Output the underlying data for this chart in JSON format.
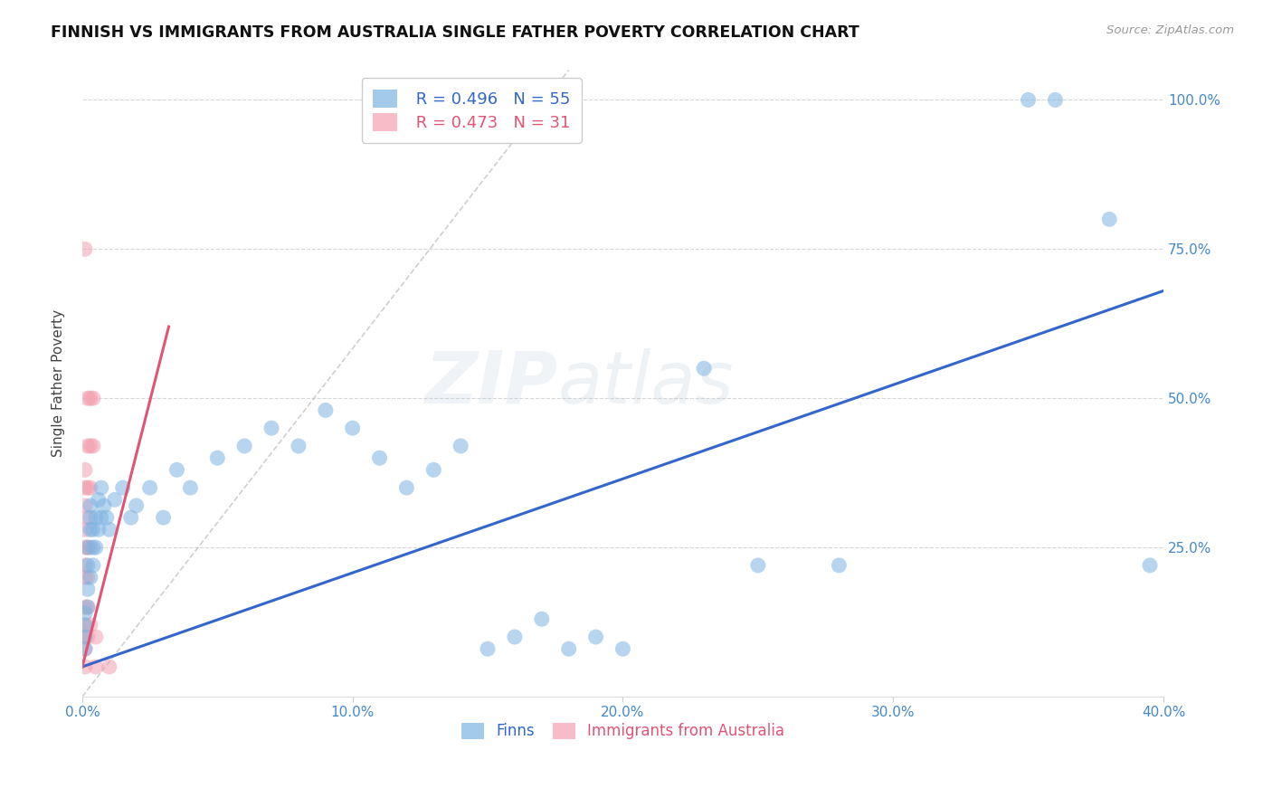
{
  "title": "FINNISH VS IMMIGRANTS FROM AUSTRALIA SINGLE FATHER POVERTY CORRELATION CHART",
  "source": "Source: ZipAtlas.com",
  "ylabel": "Single Father Poverty",
  "xlim": [
    0.0,
    0.4
  ],
  "ylim": [
    0.0,
    1.05
  ],
  "watermark": "ZIPatlas",
  "legend_blue_r": "R = 0.496",
  "legend_blue_n": "N = 55",
  "legend_pink_r": "R = 0.473",
  "legend_pink_n": "N = 31",
  "blue_color": "#7EB4E2",
  "pink_color": "#F4A0B0",
  "blue_line_color": "#3366CC",
  "pink_line_color": "#E05575",
  "blue_scatter": [
    [
      0.001,
      0.1
    ],
    [
      0.001,
      0.12
    ],
    [
      0.001,
      0.14
    ],
    [
      0.001,
      0.08
    ],
    [
      0.002,
      0.15
    ],
    [
      0.002,
      0.18
    ],
    [
      0.002,
      0.22
    ],
    [
      0.002,
      0.25
    ],
    [
      0.003,
      0.2
    ],
    [
      0.003,
      0.28
    ],
    [
      0.003,
      0.3
    ],
    [
      0.003,
      0.32
    ],
    [
      0.004,
      0.22
    ],
    [
      0.004,
      0.25
    ],
    [
      0.004,
      0.28
    ],
    [
      0.005,
      0.25
    ],
    [
      0.005,
      0.3
    ],
    [
      0.006,
      0.28
    ],
    [
      0.006,
      0.33
    ],
    [
      0.007,
      0.3
    ],
    [
      0.007,
      0.35
    ],
    [
      0.008,
      0.32
    ],
    [
      0.009,
      0.3
    ],
    [
      0.01,
      0.28
    ],
    [
      0.012,
      0.33
    ],
    [
      0.015,
      0.35
    ],
    [
      0.018,
      0.3
    ],
    [
      0.02,
      0.32
    ],
    [
      0.025,
      0.35
    ],
    [
      0.03,
      0.3
    ],
    [
      0.035,
      0.38
    ],
    [
      0.04,
      0.35
    ],
    [
      0.05,
      0.4
    ],
    [
      0.06,
      0.42
    ],
    [
      0.07,
      0.45
    ],
    [
      0.08,
      0.42
    ],
    [
      0.09,
      0.48
    ],
    [
      0.1,
      0.45
    ],
    [
      0.11,
      0.4
    ],
    [
      0.12,
      0.35
    ],
    [
      0.13,
      0.38
    ],
    [
      0.14,
      0.42
    ],
    [
      0.15,
      0.08
    ],
    [
      0.16,
      0.1
    ],
    [
      0.17,
      0.13
    ],
    [
      0.18,
      0.08
    ],
    [
      0.19,
      0.1
    ],
    [
      0.2,
      0.08
    ],
    [
      0.23,
      0.55
    ],
    [
      0.25,
      0.22
    ],
    [
      0.28,
      0.22
    ],
    [
      0.35,
      1.0
    ],
    [
      0.36,
      1.0
    ],
    [
      0.38,
      0.8
    ],
    [
      0.395,
      0.22
    ]
  ],
  "pink_scatter": [
    [
      0.001,
      0.05
    ],
    [
      0.001,
      0.08
    ],
    [
      0.001,
      0.1
    ],
    [
      0.001,
      0.12
    ],
    [
      0.001,
      0.15
    ],
    [
      0.001,
      0.2
    ],
    [
      0.001,
      0.22
    ],
    [
      0.001,
      0.25
    ],
    [
      0.001,
      0.28
    ],
    [
      0.001,
      0.32
    ],
    [
      0.001,
      0.35
    ],
    [
      0.001,
      0.38
    ],
    [
      0.002,
      0.1
    ],
    [
      0.002,
      0.15
    ],
    [
      0.002,
      0.2
    ],
    [
      0.002,
      0.25
    ],
    [
      0.002,
      0.3
    ],
    [
      0.002,
      0.35
    ],
    [
      0.002,
      0.42
    ],
    [
      0.002,
      0.5
    ],
    [
      0.003,
      0.12
    ],
    [
      0.003,
      0.25
    ],
    [
      0.003,
      0.35
    ],
    [
      0.003,
      0.42
    ],
    [
      0.003,
      0.5
    ],
    [
      0.004,
      0.42
    ],
    [
      0.004,
      0.5
    ],
    [
      0.005,
      0.1
    ],
    [
      0.005,
      0.05
    ],
    [
      0.001,
      0.75
    ],
    [
      0.01,
      0.05
    ]
  ],
  "blue_line": [
    [
      0.0,
      0.05
    ],
    [
      0.4,
      0.68
    ]
  ],
  "pink_line": [
    [
      0.0,
      0.05
    ],
    [
      0.032,
      0.62
    ]
  ],
  "diag_line": [
    [
      0.0,
      0.0
    ],
    [
      0.18,
      1.05
    ]
  ],
  "grid_color": "#CCCCCC",
  "background_color": "#FFFFFF",
  "title_fontsize": 13,
  "tick_label_color": "#4488CC"
}
